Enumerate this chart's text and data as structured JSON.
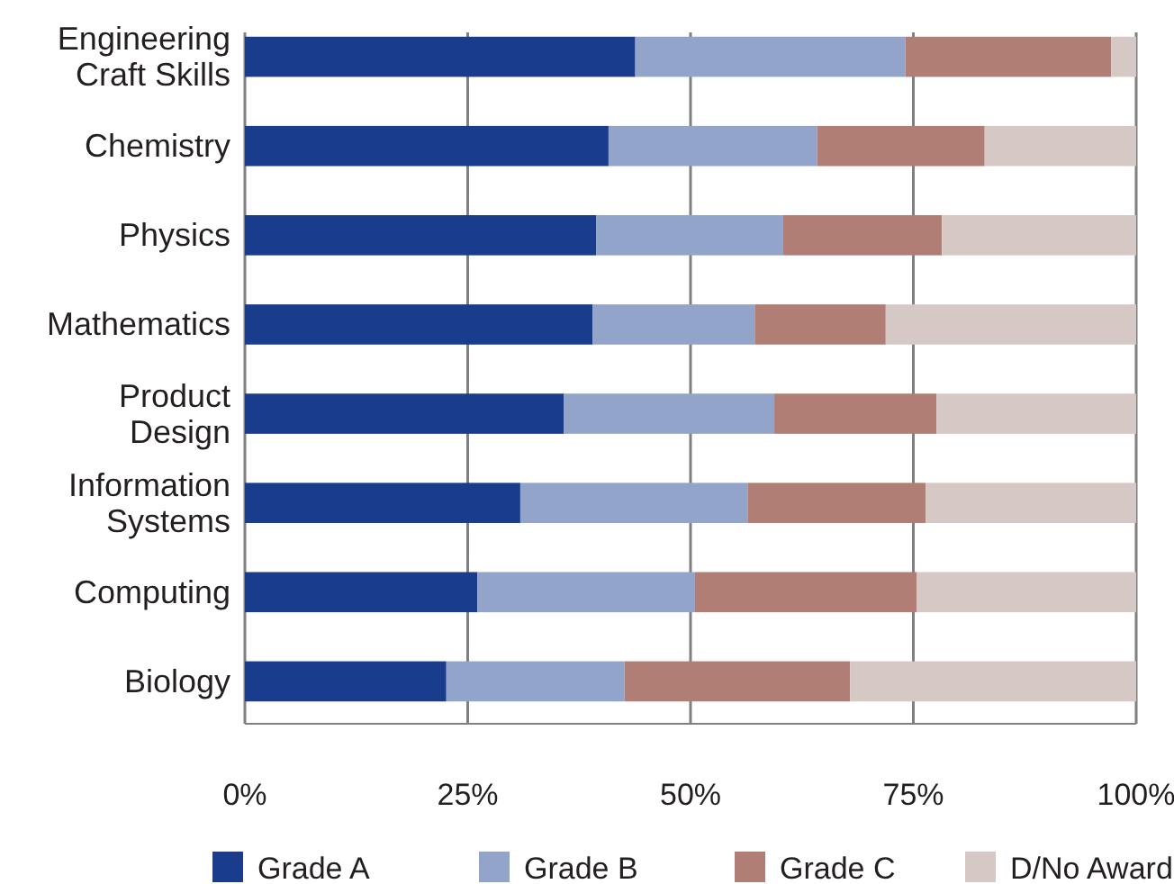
{
  "chart_data": {
    "type": "bar",
    "orientation": "horizontal",
    "stacked": true,
    "categories": [
      "Engineering\nCraft Skills",
      "Chemistry",
      "Physics",
      "Mathematics",
      "Product\nDesign",
      "Information\nSystems",
      "Computing",
      "Biology"
    ],
    "series": [
      {
        "name": "Grade A",
        "color": "#1a3c8c",
        "values": [
          43.8,
          40.8,
          39.4,
          39.0,
          35.8,
          30.9,
          26.1,
          22.6
        ]
      },
      {
        "name": "Grade B",
        "color": "#93a4ca",
        "values": [
          30.3,
          23.4,
          21.0,
          18.2,
          23.6,
          25.5,
          24.4,
          20.0
        ]
      },
      {
        "name": "Grade C",
        "color": "#b07e75",
        "values": [
          23.1,
          18.8,
          17.8,
          14.7,
          18.2,
          20.0,
          24.9,
          25.3
        ]
      },
      {
        "name": "D/No Award",
        "color": "#d6c9c5",
        "values": [
          2.8,
          17.0,
          21.8,
          28.1,
          22.4,
          23.6,
          24.6,
          32.1
        ]
      }
    ],
    "xlim": [
      0,
      100
    ],
    "xticks": [
      {
        "value": 0,
        "label": "0%"
      },
      {
        "value": 25,
        "label": "25%"
      },
      {
        "value": 50,
        "label": "50%"
      },
      {
        "value": 75,
        "label": "75%"
      },
      {
        "value": 100,
        "label": "100%"
      }
    ],
    "grid": "x",
    "legend": "bottom"
  }
}
